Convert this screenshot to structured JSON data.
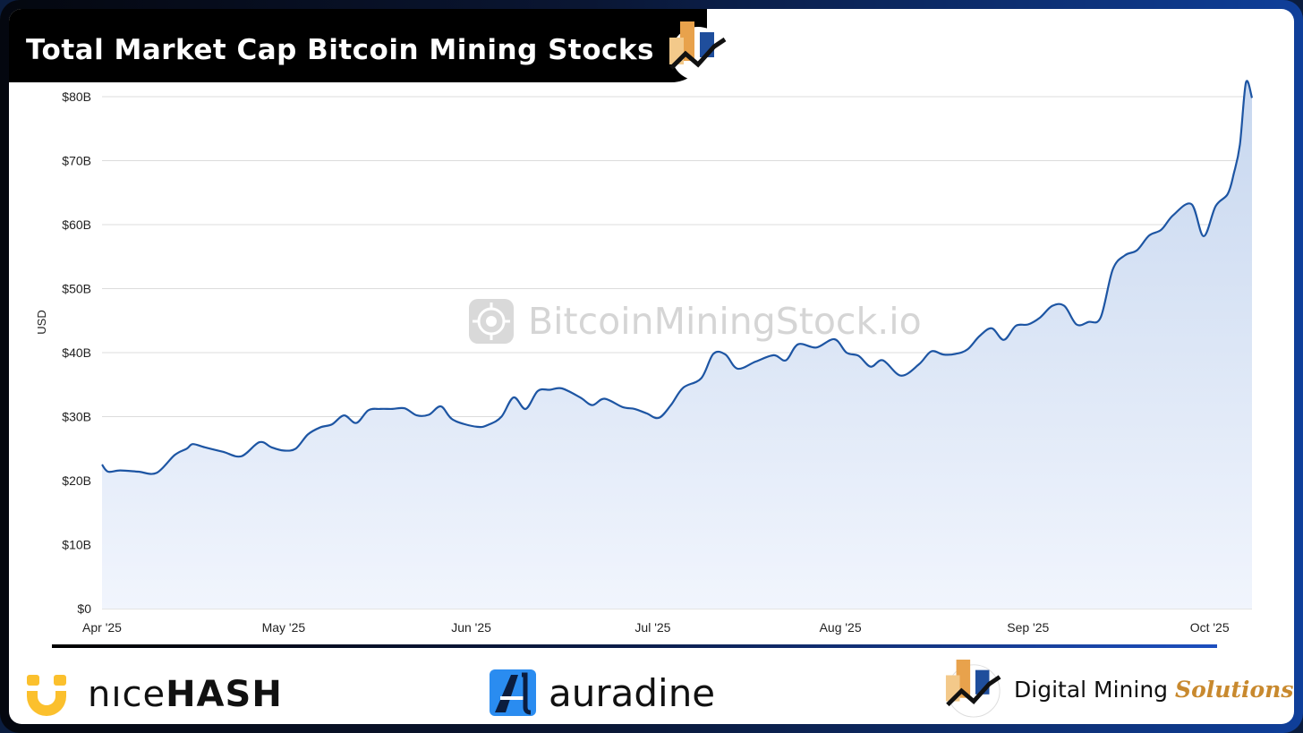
{
  "header": {
    "title": "Total Market Cap Bitcoin Mining Stocks"
  },
  "watermark": {
    "text": "BitcoinMiningStock.io"
  },
  "footer": {
    "nicehash_part1": "nıce",
    "nicehash_part2": "HASH",
    "auradine": "auradine",
    "dms_part1": "Digital Mining",
    "dms_part2": "Solutions"
  },
  "colors": {
    "line": "#1d55a3",
    "area_top": "#c7d7ef",
    "area_bottom": "#f1f5fd",
    "grid": "#dcdcdc",
    "accent_orange": "#e8a24c",
    "accent_blue": "#1f4e9c",
    "nicehash_yellow": "#fbc02d"
  },
  "chart_data": {
    "type": "area",
    "title": "Total Market Cap Bitcoin Mining Stocks",
    "ylabel": "USD",
    "xlabel": "",
    "ylim": [
      0,
      80
    ],
    "xlim": [
      "2025-04-01",
      "2025-10-08"
    ],
    "y_ticks": [
      {
        "value": 0,
        "label": "$0"
      },
      {
        "value": 10,
        "label": "$10B"
      },
      {
        "value": 20,
        "label": "$20B"
      },
      {
        "value": 30,
        "label": "$30B"
      },
      {
        "value": 40,
        "label": "$40B"
      },
      {
        "value": 50,
        "label": "$50B"
      },
      {
        "value": 60,
        "label": "$60B"
      },
      {
        "value": 70,
        "label": "$70B"
      },
      {
        "value": 80,
        "label": "$80B"
      }
    ],
    "x_ticks": [
      {
        "date": "2025-04-01",
        "label": "Apr '25"
      },
      {
        "date": "2025-05-01",
        "label": "May '25"
      },
      {
        "date": "2025-06-01",
        "label": "Jun '25"
      },
      {
        "date": "2025-07-01",
        "label": "Jul '25"
      },
      {
        "date": "2025-08-01",
        "label": "Aug '25"
      },
      {
        "date": "2025-09-01",
        "label": "Sep '25"
      },
      {
        "date": "2025-10-01",
        "label": "Oct '25"
      }
    ],
    "grid": true,
    "legend": "none",
    "series": [
      {
        "x": [
          "2025-04-01",
          "2025-04-02",
          "2025-04-04",
          "2025-04-07",
          "2025-04-10",
          "2025-04-13",
          "2025-04-15",
          "2025-04-16",
          "2025-04-18",
          "2025-04-21",
          "2025-04-24",
          "2025-04-27",
          "2025-04-29",
          "2025-05-01",
          "2025-05-03",
          "2025-05-05",
          "2025-05-07",
          "2025-05-09",
          "2025-05-11",
          "2025-05-13",
          "2025-05-15",
          "2025-05-17",
          "2025-05-19",
          "2025-05-21",
          "2025-05-23",
          "2025-05-25",
          "2025-05-27",
          "2025-05-29",
          "2025-06-02",
          "2025-06-04",
          "2025-06-06",
          "2025-06-08",
          "2025-06-10",
          "2025-06-12",
          "2025-06-14",
          "2025-06-16",
          "2025-06-19",
          "2025-06-21",
          "2025-06-23",
          "2025-06-26",
          "2025-06-28",
          "2025-06-30",
          "2025-07-02",
          "2025-07-04",
          "2025-07-06",
          "2025-07-09",
          "2025-07-11",
          "2025-07-13",
          "2025-07-15",
          "2025-07-18",
          "2025-07-21",
          "2025-07-23",
          "2025-07-25",
          "2025-07-28",
          "2025-07-31",
          "2025-08-02",
          "2025-08-04",
          "2025-08-06",
          "2025-08-08",
          "2025-08-11",
          "2025-08-14",
          "2025-08-16",
          "2025-08-18",
          "2025-08-20",
          "2025-08-22",
          "2025-08-24",
          "2025-08-26",
          "2025-08-28",
          "2025-08-30",
          "2025-09-01",
          "2025-09-03",
          "2025-09-05",
          "2025-09-07",
          "2025-09-09",
          "2025-09-11",
          "2025-09-13",
          "2025-09-15",
          "2025-09-17",
          "2025-09-19",
          "2025-09-21",
          "2025-09-23",
          "2025-09-25",
          "2025-09-28",
          "2025-09-30",
          "2025-10-02",
          "2025-10-04",
          "2025-10-05",
          "2025-10-06",
          "2025-10-07",
          "2025-10-08"
        ],
        "values": [
          22.5,
          21.4,
          21.6,
          21.4,
          21.2,
          24.0,
          25.0,
          25.7,
          25.2,
          24.5,
          23.8,
          26.0,
          25.2,
          24.7,
          25.0,
          27.2,
          28.3,
          28.8,
          30.2,
          29.0,
          31.0,
          31.2,
          31.2,
          31.3,
          30.2,
          30.3,
          31.6,
          29.5,
          28.4,
          28.8,
          30.0,
          33.0,
          31.2,
          34.0,
          34.2,
          34.4,
          33.0,
          31.8,
          32.8,
          31.5,
          31.2,
          30.5,
          29.8,
          31.8,
          34.5,
          36.0,
          39.8,
          39.7,
          37.5,
          38.6,
          39.6,
          38.8,
          41.3,
          40.8,
          42.1,
          40.0,
          39.5,
          37.8,
          38.8,
          36.4,
          38.2,
          40.2,
          39.7,
          39.8,
          40.5,
          42.6,
          43.8,
          42.0,
          44.2,
          44.4,
          45.5,
          47.3,
          47.3,
          44.4,
          44.8,
          45.5,
          53.0,
          55.2,
          56.0,
          58.3,
          59.2,
          61.5,
          63.2,
          58.2,
          62.9,
          64.8,
          68.0,
          72.5,
          82.2,
          79.8
        ],
        "color": "#1d55a3"
      }
    ]
  }
}
